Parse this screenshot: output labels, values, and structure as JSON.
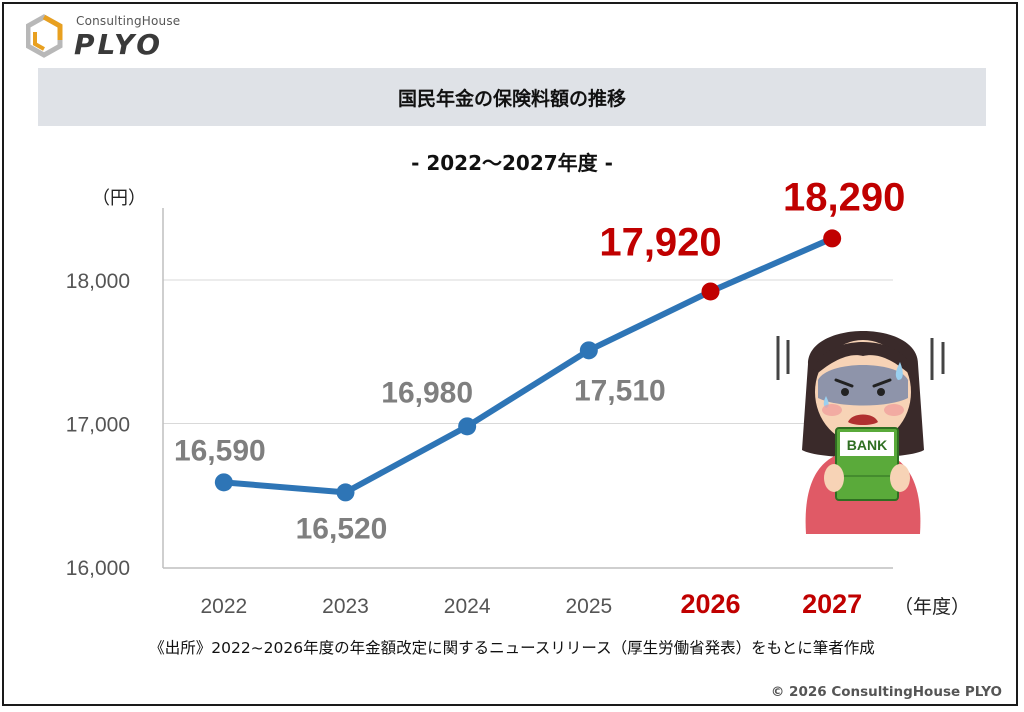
{
  "brand": {
    "small": "ConsultingHouse",
    "big": "PLYO"
  },
  "title": "国民年金の保険料額の推移",
  "subtitle": "- 2022～2027年度 -",
  "y_unit": "（円）",
  "x_unit": "（年度）",
  "source": "《出所》2022~2026年度の年金額改定に関するニュースリリース（厚生労働省発表）をもとに筆者作成",
  "copyright": "© 2026 ConsultingHouse PLYO",
  "colors": {
    "line": "#2e75b6",
    "highlight": "#c00000",
    "label_gray": "#7f7f7f",
    "title_bar": "#dfe2e7"
  },
  "illustration": {
    "book_label": "BANK"
  },
  "chart_data": {
    "type": "line",
    "categories": [
      "2022",
      "2023",
      "2024",
      "2025",
      "2026",
      "2027"
    ],
    "values": [
      16590,
      16520,
      16980,
      17510,
      17920,
      18290
    ],
    "value_labels": [
      "16,590",
      "16,520",
      "16,980",
      "17,510",
      "17,920",
      "18,290"
    ],
    "highlight": [
      false,
      false,
      false,
      false,
      true,
      true
    ],
    "ylim": [
      16000,
      18600
    ],
    "yticks": [
      16000,
      17000,
      18000
    ],
    "ytick_labels": [
      "16,000",
      "17,000",
      "18,000"
    ],
    "grid": true
  }
}
